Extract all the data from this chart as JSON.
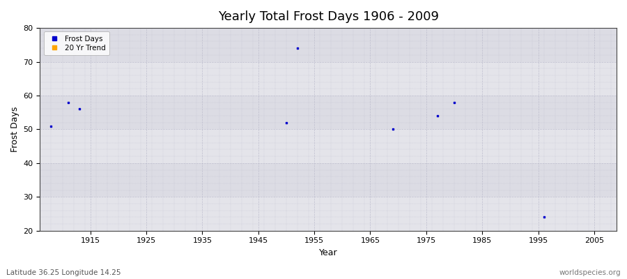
{
  "title": "Yearly Total Frost Days 1906 - 2009",
  "xlabel": "Year",
  "ylabel": "Frost Days",
  "subtitle_left": "Latitude 36.25 Longitude 14.25",
  "subtitle_right": "worldspecies.org",
  "xlim": [
    1906,
    2009
  ],
  "ylim": [
    20,
    80
  ],
  "xticks": [
    1915,
    1925,
    1935,
    1945,
    1955,
    1965,
    1975,
    1985,
    1995,
    2005
  ],
  "yticks": [
    20,
    30,
    40,
    50,
    60,
    70,
    80
  ],
  "data_x": [
    1908,
    1911,
    1913,
    1950,
    1952,
    1969,
    1977,
    1980,
    1996
  ],
  "data_y": [
    51,
    58,
    56,
    52,
    74,
    50,
    54,
    58,
    24
  ],
  "point_color": "#0000CC",
  "point_marker": "s",
  "point_size": 4,
  "bg_outer": "#FFFFFF",
  "bg_plot": "#E8E8EC",
  "band_light": "#E4E4EA",
  "band_dark": "#DCDCE4",
  "grid_color": "#BBBBCC",
  "legend_frost_color": "#0000CC",
  "legend_trend_color": "#FFA500",
  "title_fontsize": 13,
  "axis_label_fontsize": 9,
  "tick_fontsize": 8
}
